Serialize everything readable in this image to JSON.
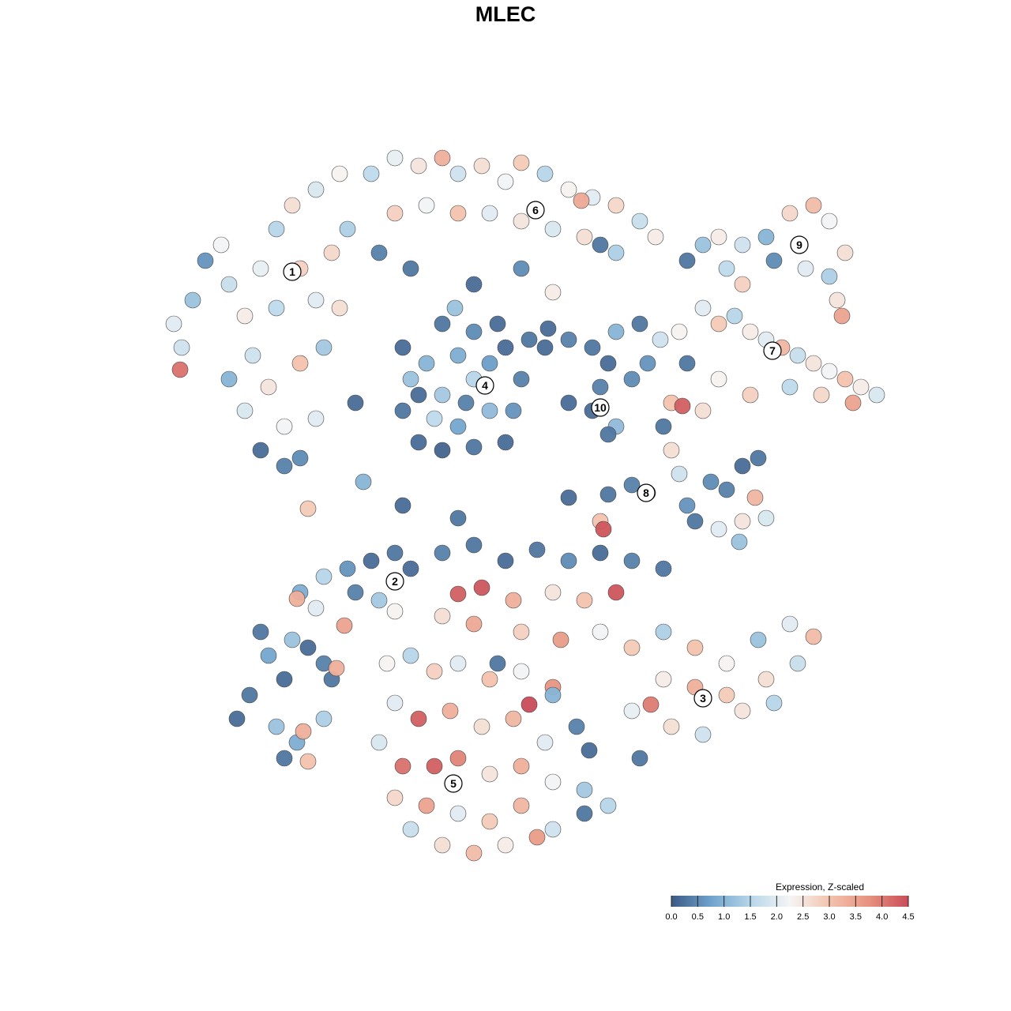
{
  "chart_data": {
    "type": "scatter",
    "title": "MLEC",
    "xlim": [
      -25,
      25
    ],
    "ylim": [
      -25,
      25
    ],
    "x": [
      -20.5,
      -21,
      -19.8,
      -19,
      -18,
      -17.5,
      -16.5,
      -15.5,
      -14.5,
      -13.5,
      -12,
      -10.5,
      -13,
      -12,
      -11,
      -10,
      -14.5,
      -16,
      -15,
      -13,
      -11.5,
      -10.5,
      -17.5,
      -16.5,
      -14,
      -13,
      -15.5,
      -14,
      -12,
      -20.6,
      -8.5,
      -7,
      -5.5,
      -4,
      -3,
      -1.5,
      0,
      1,
      2.5,
      4,
      5.5,
      7,
      8.5,
      9.5,
      -7,
      -5,
      -3,
      -1,
      1,
      3,
      5,
      7,
      -8,
      -6,
      -2,
      1,
      3,
      6,
      4.8,
      -6.5,
      -6,
      -6.5,
      -5.5,
      -4,
      -2,
      0,
      0.5,
      1,
      0,
      -2,
      -4,
      -5,
      -4,
      -3,
      -2,
      -1,
      -3,
      -1,
      -4.5,
      -2.5,
      -5.5,
      1.5,
      -3.2,
      -0.5,
      2.5,
      4,
      5.5,
      7,
      8.5,
      6.5,
      8,
      6,
      5.5,
      7,
      6.5,
      4,
      2.7,
      9,
      11.5,
      12.5,
      13.5,
      15,
      16.5,
      18,
      19.5,
      20.5,
      21.5,
      20.5,
      19,
      17,
      15,
      14,
      21,
      21.3,
      9.8,
      11,
      12.5,
      13.5,
      14.5,
      15.5,
      16.5,
      17.5,
      18.5,
      19.5,
      20.5,
      21.5,
      22.5,
      23.5,
      22,
      20,
      18,
      15.5,
      13.5,
      11.5,
      12.5,
      10.5,
      11.2,
      10,
      10.5,
      11,
      11.5,
      12,
      13,
      14,
      15,
      16,
      9,
      8,
      6.5,
      4,
      13.5,
      15,
      16.5,
      15.8,
      14.8,
      6,
      6.2,
      -15.5,
      -15,
      -13.5,
      -12.5,
      -11.5,
      -11,
      -12,
      -13,
      -11.5,
      -10,
      -8.5,
      -7,
      -6,
      -8,
      -9.5,
      -13.2,
      -10.2,
      -10.7,
      -7,
      -14,
      -17,
      -16.2,
      -14.5,
      -13.2,
      -12.8,
      -11.5,
      -12.5,
      -14,
      -4,
      -2,
      0,
      2,
      4,
      6,
      8,
      10,
      -3,
      -1.5,
      0.5,
      3,
      5,
      7,
      -4,
      -2,
      1,
      3.5,
      6,
      8,
      10,
      12,
      14,
      16,
      18,
      19.5,
      18.5,
      16.5,
      14,
      12,
      10,
      9.2,
      8,
      10.5,
      12.5,
      15,
      17,
      8.5,
      3,
      1.5,
      -7.5,
      -6,
      -4.5,
      -3,
      -1,
      1,
      3,
      -7,
      -5.5,
      -3.5,
      -1.5,
      0.5,
      2.5,
      4.5,
      -8,
      -6.5,
      -4.5,
      -3,
      -1,
      1,
      3,
      5,
      -7,
      -5,
      -3,
      -1,
      1,
      3,
      5,
      6.5,
      -4,
      -2,
      0,
      2,
      -6,
      -12.5,
      -6.5,
      -3,
      -9.5,
      -0.5,
      5.3,
      -9
    ],
    "y": [
      10,
      11.5,
      13,
      15.5,
      16.5,
      14,
      12,
      15,
      17.5,
      19,
      20,
      21,
      15,
      13,
      16,
      17.5,
      12.5,
      9.5,
      7.5,
      9,
      10,
      12.5,
      8,
      6,
      5,
      3,
      3.5,
      2.5,
      5.5,
      8.6,
      21,
      22,
      21.5,
      22,
      21,
      21.5,
      20.5,
      21.7,
      21,
      20,
      19.5,
      19,
      18,
      17,
      18.5,
      19,
      18.5,
      18.5,
      18,
      17.5,
      17,
      16,
      16,
      15,
      14,
      15,
      13.5,
      16.5,
      19.3,
      10,
      8,
      6,
      4,
      3.5,
      3.7,
      4,
      6,
      8,
      10,
      11,
      11.5,
      9,
      7,
      5,
      8,
      6,
      9.5,
      9,
      5.5,
      6.5,
      7,
      10.5,
      12.5,
      11.5,
      10,
      10.5,
      10,
      11,
      11.5,
      9,
      8,
      7.5,
      6,
      5,
      4.5,
      6.5,
      11.2,
      9,
      15.5,
      16.5,
      17,
      16.5,
      17,
      18.5,
      19,
      18,
      16,
      14.5,
      15,
      15.5,
      14,
      15,
      13,
      12,
      10.5,
      11,
      12.5,
      11.5,
      12,
      11,
      10.5,
      10,
      9.5,
      9,
      8.5,
      8,
      7.5,
      7,
      6.5,
      7,
      7.5,
      7,
      8,
      9,
      6,
      6.5,
      6.3,
      5,
      3.5,
      2,
      0,
      -1,
      1.5,
      1,
      2.5,
      3,
      0.8,
      1.3,
      0.7,
      0.5,
      -1.5,
      -1,
      -0.8,
      0.5,
      -2.3,
      -1,
      -1.5,
      -8,
      -9.5,
      -8.5,
      -9,
      -10,
      -11,
      -6.5,
      -5.5,
      -4.5,
      -4,
      -3.5,
      -3,
      -4,
      -6,
      -5.5,
      -5.9,
      -7.6,
      -10.3,
      -6.7,
      -11,
      -13.5,
      -12,
      -14,
      -15,
      -14.3,
      -13.5,
      -16.2,
      -16,
      -3,
      -2.5,
      -3.5,
      -2.8,
      -3.5,
      -3,
      -3.5,
      -4,
      -5.6,
      -5.2,
      -6,
      -5.5,
      -6,
      -5.5,
      -7,
      -7.5,
      -8,
      -8.5,
      -8,
      -9,
      -8,
      -9,
      -10,
      -8.5,
      -7.5,
      -8.3,
      -10,
      -11,
      -12,
      -11.5,
      -11,
      -12.6,
      -13,
      -14,
      -14.5,
      -13,
      -12.5,
      -16,
      -11.5,
      -12.6,
      -10,
      -9.5,
      -10.5,
      -10,
      -11,
      -10.5,
      -12,
      -12.5,
      -13.5,
      -13,
      -14,
      -13.5,
      -15,
      -14,
      -15,
      -16.5,
      -16.5,
      -16,
      -17,
      -16.5,
      -17.5,
      -18,
      -18.5,
      -19,
      -19.5,
      -20,
      -19,
      -20.5,
      -19.5,
      -19,
      -21.5,
      -22,
      -21.5,
      -21,
      -20.5,
      -0.2,
      0,
      -0.8,
      6.5,
      -10,
      -15.5,
      1.5
    ],
    "values": [
      1.8,
      2.0,
      1.2,
      0.6,
      2.2,
      1.7,
      2.4,
      2.1,
      1.5,
      2.6,
      1.9,
      2.3,
      2.8,
      2.0,
      2.7,
      1.4,
      1.6,
      1.8,
      2.5,
      3.0,
      1.3,
      2.6,
      1.0,
      1.9,
      2.2,
      0.5,
      0.2,
      0.4,
      2.0,
      4.1,
      1.6,
      2.1,
      2.5,
      3.3,
      1.8,
      2.6,
      2.2,
      2.9,
      1.5,
      2.3,
      2.0,
      2.7,
      1.7,
      2.4,
      2.8,
      2.2,
      3.0,
      2.0,
      2.5,
      1.9,
      2.6,
      1.4,
      0.4,
      0.3,
      0.2,
      0.5,
      2.4,
      0.3,
      3.4,
      0.2,
      1.2,
      0.3,
      0.2,
      0.1,
      0.3,
      0.2,
      0.6,
      0.4,
      0.2,
      0.5,
      0.3,
      1.0,
      1.3,
      0.8,
      1.5,
      1.1,
      0.9,
      0.7,
      1.6,
      0.4,
      0.2,
      0.3,
      1.2,
      0.2,
      0.2,
      0.4,
      0.3,
      1.0,
      0.3,
      0.2,
      0.5,
      0.4,
      0.2,
      1.1,
      0.3,
      0.2,
      0.2,
      0.6,
      0.3,
      1.2,
      2.4,
      1.8,
      1.0,
      2.7,
      3.1,
      2.2,
      2.6,
      1.4,
      2.0,
      0.5,
      2.8,
      1.6,
      2.5,
      3.5,
      1.8,
      2.3,
      2.0,
      2.9,
      1.5,
      2.4,
      2.0,
      3.2,
      1.7,
      2.5,
      2.2,
      3.0,
      2.4,
      1.9,
      3.5,
      2.7,
      1.6,
      2.8,
      2.3,
      0.3,
      2.6,
      3.0,
      4.3,
      0.3,
      2.6,
      1.8,
      0.6,
      0.3,
      0.5,
      0.4,
      0.2,
      0.3,
      0.2,
      0.4,
      0.3,
      0.2,
      2.0,
      2.5,
      1.9,
      3.2,
      1.2,
      3.0,
      4.4,
      0.3,
      0.8,
      1.2,
      0.2,
      0.4,
      0.3,
      2.0,
      0.9,
      1.5,
      0.6,
      0.2,
      0.3,
      0.2,
      1.3,
      0.4,
      3.3,
      3.5,
      3.3,
      2.3,
      0.2,
      0.2,
      0.3,
      1.2,
      0.9,
      3.3,
      1.4,
      3.0,
      0.3,
      0.4,
      0.3,
      0.2,
      0.3,
      0.5,
      0.2,
      0.4,
      0.3,
      4.3,
      4.4,
      3.3,
      2.5,
      3.0,
      4.4,
      2.6,
      3.4,
      2.8,
      3.6,
      2.2,
      2.9,
      1.4,
      3.0,
      2.3,
      1.2,
      2.0,
      3.1,
      1.7,
      2.6,
      2.9,
      3.3,
      2.4,
      4.0,
      2.1,
      2.6,
      1.8,
      2.5,
      1.5,
      0.3,
      3.7,
      4.5,
      2.3,
      1.5,
      2.8,
      2.0,
      3.0,
      2.2,
      1.0,
      2.0,
      4.3,
      3.3,
      2.6,
      3.2,
      2.0,
      0.4,
      1.9,
      4.1,
      4.3,
      3.9,
      2.5,
      3.3,
      2.2,
      1.3,
      2.7,
      3.5,
      2.0,
      2.9,
      3.2,
      1.8,
      0.3,
      1.5,
      2.6,
      3.1,
      2.4,
      3.6,
      1.7,
      2.9,
      0.2,
      0.3,
      0.2,
      0.3,
      0.2,
      1.0
    ],
    "clusters": [
      {
        "label": "1",
        "x": -13.5,
        "y": 14.8
      },
      {
        "label": "2",
        "x": -7,
        "y": -4.8
      },
      {
        "label": "3",
        "x": 12.5,
        "y": -12.2
      },
      {
        "label": "4",
        "x": -1.3,
        "y": 7.6
      },
      {
        "label": "5",
        "x": -3.3,
        "y": -17.6
      },
      {
        "label": "6",
        "x": 1.9,
        "y": 18.7
      },
      {
        "label": "7",
        "x": 16.9,
        "y": 9.8
      },
      {
        "label": "8",
        "x": 8.9,
        "y": 0.8
      },
      {
        "label": "9",
        "x": 18.6,
        "y": 16.5
      },
      {
        "label": "10",
        "x": 6,
        "y": 6.2
      }
    ],
    "colorbar": {
      "title": "Expression, Z-scaled",
      "lim": [
        0,
        4.5
      ],
      "ticks": [
        {
          "value": 0,
          "label": "0.0"
        },
        0.5,
        {
          "value": 1,
          "label": "1.0"
        },
        1.5,
        {
          "value": 2,
          "label": "2.0"
        },
        2.5,
        {
          "value": 3,
          "label": "3.0"
        },
        3.5,
        {
          "value": 4,
          "label": "4.0"
        },
        4.5
      ],
      "colors": [
        "#3b5a84",
        "#6fa3cc",
        "#b6d6e9",
        "#f5f5f5",
        "#f3c3ae",
        "#e7927f",
        "#c94c58"
      ]
    }
  }
}
